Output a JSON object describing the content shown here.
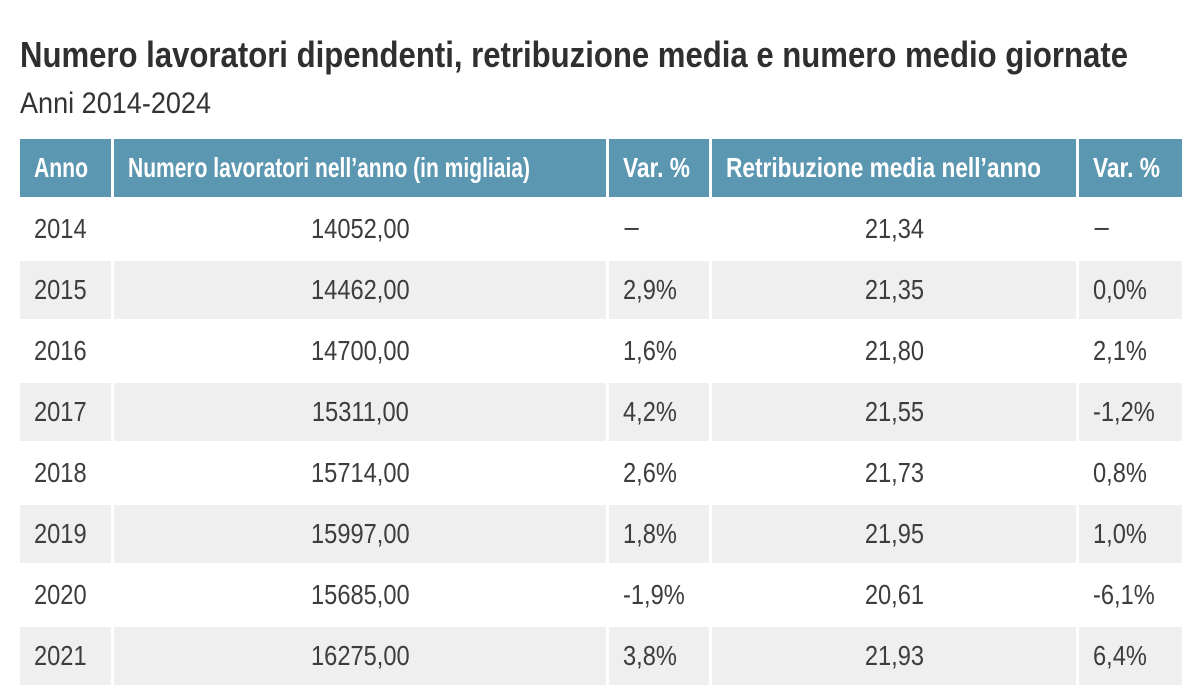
{
  "chart_data": {
    "type": "table",
    "title": "Numero lavoratori dipendenti, retribuzione media e numero medio giornate",
    "subtitle": "Anni 2014-2024",
    "columns": [
      {
        "label": "Anno",
        "align": "left"
      },
      {
        "label": "Numero lavoratori nell’anno (in migliaia)",
        "align": "center"
      },
      {
        "label": "Var. %",
        "align": "left"
      },
      {
        "label": "Retribuzione media nell’anno",
        "align": "center"
      },
      {
        "label": "Var. %",
        "align": "left"
      }
    ],
    "rows": [
      {
        "anno": "2014",
        "numero_lavoratori": "14052,00",
        "var_lavoratori": "−",
        "retribuzione_media": "21,34",
        "var_retribuzione": "−"
      },
      {
        "anno": "2015",
        "numero_lavoratori": "14462,00",
        "var_lavoratori": "2,9%",
        "retribuzione_media": "21,35",
        "var_retribuzione": "0,0%"
      },
      {
        "anno": "2016",
        "numero_lavoratori": "14700,00",
        "var_lavoratori": "1,6%",
        "retribuzione_media": "21,80",
        "var_retribuzione": "2,1%"
      },
      {
        "anno": "2017",
        "numero_lavoratori": "15311,00",
        "var_lavoratori": "4,2%",
        "retribuzione_media": "21,55",
        "var_retribuzione": "-1,2%"
      },
      {
        "anno": "2018",
        "numero_lavoratori": "15714,00",
        "var_lavoratori": "2,6%",
        "retribuzione_media": "21,73",
        "var_retribuzione": "0,8%"
      },
      {
        "anno": "2019",
        "numero_lavoratori": "15997,00",
        "var_lavoratori": "1,8%",
        "retribuzione_media": "21,95",
        "var_retribuzione": "1,0%"
      },
      {
        "anno": "2020",
        "numero_lavoratori": "15685,00",
        "var_lavoratori": "-1,9%",
        "retribuzione_media": "20,61",
        "var_retribuzione": "-6,1%"
      },
      {
        "anno": "2021",
        "numero_lavoratori": "16275,00",
        "var_lavoratori": "3,8%",
        "retribuzione_media": "21,93",
        "var_retribuzione": "6,4%"
      }
    ],
    "colors": {
      "header_background": "#5c97b2",
      "header_text": "#ffffff",
      "alt_row_background": "#efefef",
      "body_text": "#3d3d3d",
      "title_text": "#2f2f2f"
    }
  }
}
